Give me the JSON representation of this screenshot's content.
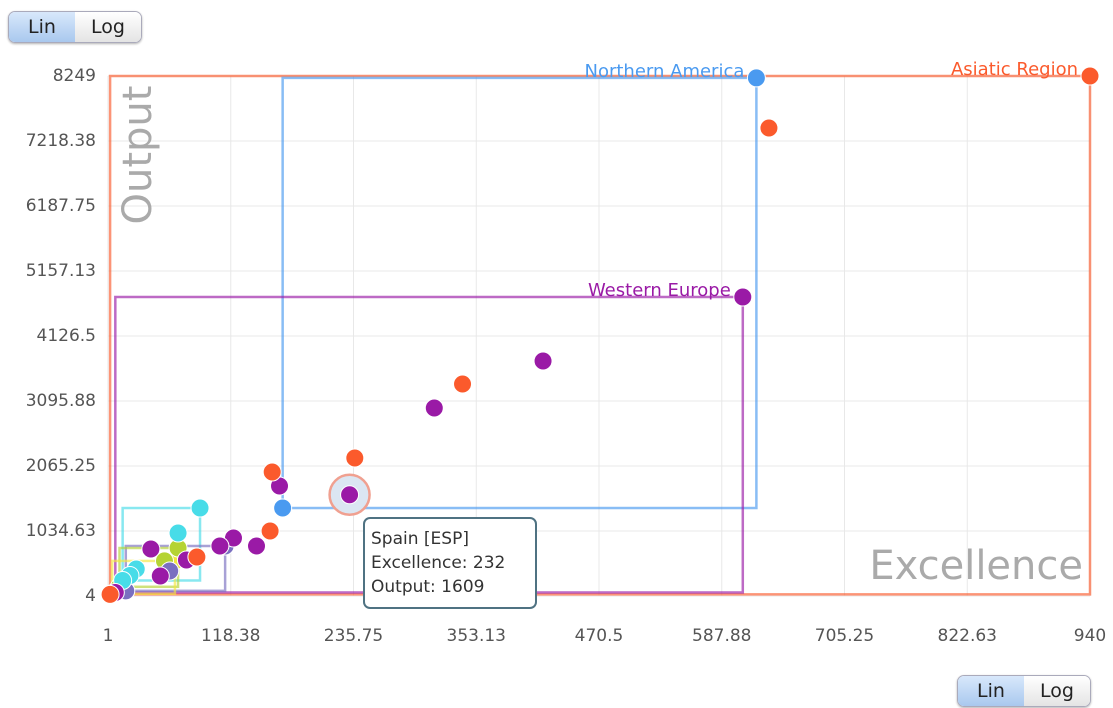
{
  "ui": {
    "top_toggle": [
      "Lin",
      "Log"
    ],
    "bottom_toggle": [
      "Lin",
      "Log"
    ]
  },
  "chart_data": {
    "type": "scatter",
    "x_label": "Excellence",
    "y_label": "Output",
    "xlim": [
      1,
      940
    ],
    "xticks": [
      1,
      118.38,
      235.75,
      353.13,
      470.5,
      587.88,
      705.25,
      822.63,
      940
    ],
    "ylim": [
      4,
      8249
    ],
    "yticks": [
      4,
      1034.63,
      2065.25,
      3095.88,
      4126.5,
      5157.13,
      6187.75,
      7218.38,
      8249
    ],
    "grid": true,
    "boxes": true,
    "series": [
      {
        "name": "Asiatic Region",
        "color": "#fb5a2c",
        "x": [
          940,
          633,
          340,
          237,
          158,
          156,
          86,
          3
        ],
        "y": [
          8249,
          7424,
          3365,
          2192,
          1970,
          1035,
          622,
          30
        ]
      },
      {
        "name": "Northern America",
        "color": "#4a9af0",
        "x": [
          621,
          168
        ],
        "y": [
          8219,
          1399
        ]
      },
      {
        "name": "Western Europe",
        "color": "#9a1aa6",
        "x": [
          608,
          417,
          313,
          232,
          165,
          143,
          121,
          108,
          76,
          51,
          42,
          8
        ],
        "y": [
          4745,
          3730,
          2985,
          1609,
          1748,
          797,
          924,
          797,
          575,
          321,
          749,
          60
        ]
      },
      {
        "color": "#48dce8",
        "x": [
          89,
          68,
          28,
          22,
          15
        ],
        "y": [
          1399,
          1003,
          432,
          330,
          250
        ]
      },
      {
        "color": "#7a6fc0",
        "x": [
          113,
          18,
          60
        ],
        "y": [
          797,
          86,
          400
        ]
      },
      {
        "color": "#b5d334",
        "x": [
          68,
          55,
          12
        ],
        "y": [
          765,
          560,
          150
        ]
      },
      {
        "color": "#f2e640",
        "x": [
          65,
          5,
          10
        ],
        "y": [
          560,
          40,
          100
        ]
      }
    ],
    "highlight": {
      "series": 2,
      "index": 3
    },
    "tooltip": {
      "title": "Spain [ESP]",
      "lines": [
        "Excellence: 232",
        "Output: 1609"
      ]
    }
  }
}
